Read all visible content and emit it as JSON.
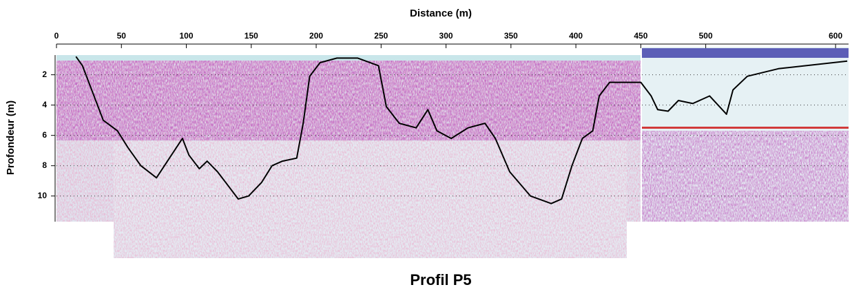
{
  "chart_data": {
    "type": "line",
    "title": "Profil P5",
    "x_label": "Distance (m)",
    "y_label": "Profondeur (m)",
    "x": [
      15,
      20,
      28,
      36,
      47,
      55,
      65,
      77,
      87,
      97,
      102,
      110,
      116,
      124,
      132,
      140,
      148,
      158,
      166,
      174,
      185,
      190,
      195,
      203,
      216,
      232,
      248,
      254,
      264,
      277,
      286,
      293,
      304,
      317,
      330,
      338,
      349,
      365,
      381,
      389,
      397,
      405,
      413,
      418,
      426,
      439,
      450,
      458,
      463,
      471,
      479,
      490,
      503,
      516,
      521,
      532,
      556,
      609
    ],
    "values": [
      0.8,
      1.4,
      3.2,
      5.0,
      5.7,
      6.8,
      8.0,
      8.8,
      7.5,
      6.2,
      7.3,
      8.2,
      7.7,
      8.4,
      9.3,
      10.2,
      10.0,
      9.1,
      8.0,
      7.7,
      7.5,
      5.2,
      2.1,
      1.2,
      0.9,
      0.9,
      1.4,
      4.1,
      5.2,
      5.5,
      4.3,
      5.7,
      6.2,
      5.5,
      5.2,
      6.2,
      8.4,
      10.0,
      10.5,
      10.2,
      8.0,
      6.2,
      5.7,
      3.4,
      2.5,
      2.5,
      2.5,
      3.4,
      4.3,
      4.4,
      3.7,
      3.9,
      3.4,
      4.6,
      3.0,
      2.1,
      1.6,
      1.1
    ],
    "color": "#000000",
    "xlim": [
      0,
      610
    ],
    "xticks": [
      0,
      50,
      100,
      150,
      200,
      250,
      300,
      350,
      400,
      450,
      500,
      600
    ],
    "ylim": [
      0.7,
      14.1
    ],
    "yticks": [
      2,
      4,
      6,
      8,
      10
    ],
    "y_inverted": true,
    "grid": true
  }
}
